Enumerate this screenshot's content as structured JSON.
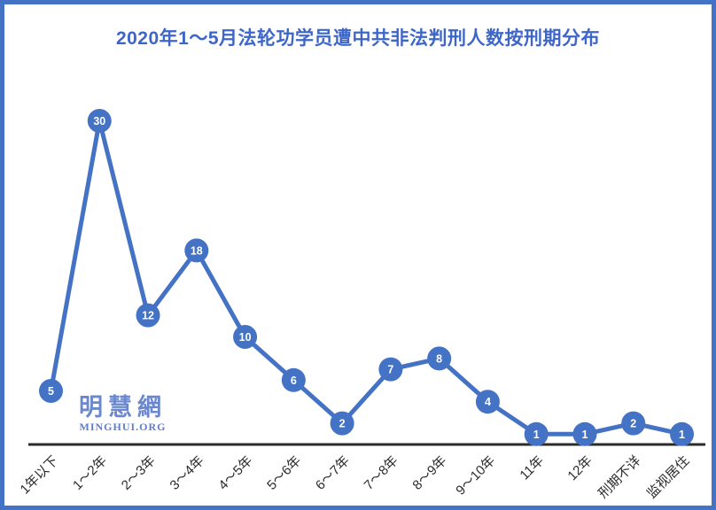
{
  "chart_data": {
    "type": "line",
    "title": "2020年1～5月法轮功学员遭中共非法判刑人数按刑期分布",
    "categories": [
      "1年以下",
      "1～2年",
      "2～3年",
      "3～4年",
      "4～5年",
      "5～6年",
      "6～7年",
      "7～8年",
      "8～9年",
      "9～10年",
      "11年",
      "12年",
      "刑期不详",
      "监视居住"
    ],
    "values": [
      5,
      30,
      12,
      18,
      10,
      6,
      2,
      7,
      8,
      4,
      1,
      1,
      2,
      1
    ],
    "xlabel": "",
    "ylabel": "",
    "ylim": [
      0,
      32
    ],
    "grid": false,
    "legend": "none",
    "y_axis_shown": false,
    "data_labels": "white numbers inside round markers",
    "series_color": "#4472C4",
    "marker_label_color": "#ffffff",
    "axis_line_color": "#2B2B2B",
    "tick_label_color": "#2B2B2B",
    "title_color": "#3D66C8",
    "frame_border_color": "#4472C4"
  },
  "watermark": {
    "chinese": "明慧網",
    "english": "MINGHUI.ORG"
  }
}
